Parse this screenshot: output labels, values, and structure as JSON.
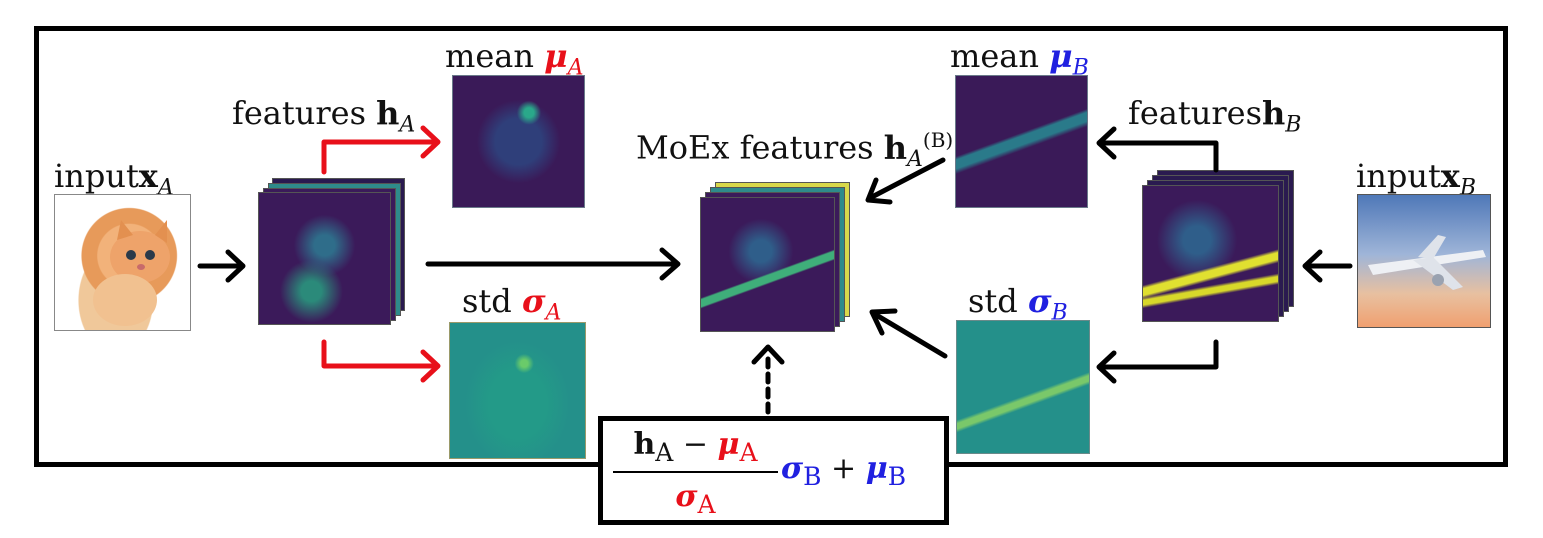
{
  "labels": {
    "input_a": "input",
    "input_a_sym": "x",
    "input_a_sub": "A",
    "features_a": "features",
    "features_a_sym": "h",
    "features_a_sub": "A",
    "mean_a": "mean",
    "mean_a_sym": "μ",
    "mean_a_sub": "A",
    "std_a": "std",
    "std_a_sym": "σ",
    "std_a_sub": "A",
    "moex": "MoEx features",
    "moex_sym": "h",
    "moex_sub": "A",
    "moex_sup": "(B)",
    "mean_b": "mean",
    "mean_b_sym": "μ",
    "mean_b_sub": "B",
    "features_b": "features",
    "features_b_sym": "h",
    "features_b_sub": "B",
    "std_b": "std",
    "std_b_sym": "σ",
    "std_b_sub": "B",
    "input_b": "input",
    "input_b_sym": "x",
    "input_b_sub": "B"
  },
  "formula": {
    "num_h": "h",
    "num_h_sub": "A",
    "minus": " − ",
    "num_mu": "μ",
    "num_mu_sub": "A",
    "den_sigma": "σ",
    "den_sigma_sub": "A",
    "sigma_b": "σ",
    "sigma_b_sub": "B",
    "plus": " + ",
    "mu_b": "μ",
    "mu_b_sub": "B"
  },
  "colors": {
    "a_color": "#e8101a",
    "b_color": "#2020e0",
    "feature_map": "#3b1a5a",
    "std_map": "#1f8c8a"
  }
}
